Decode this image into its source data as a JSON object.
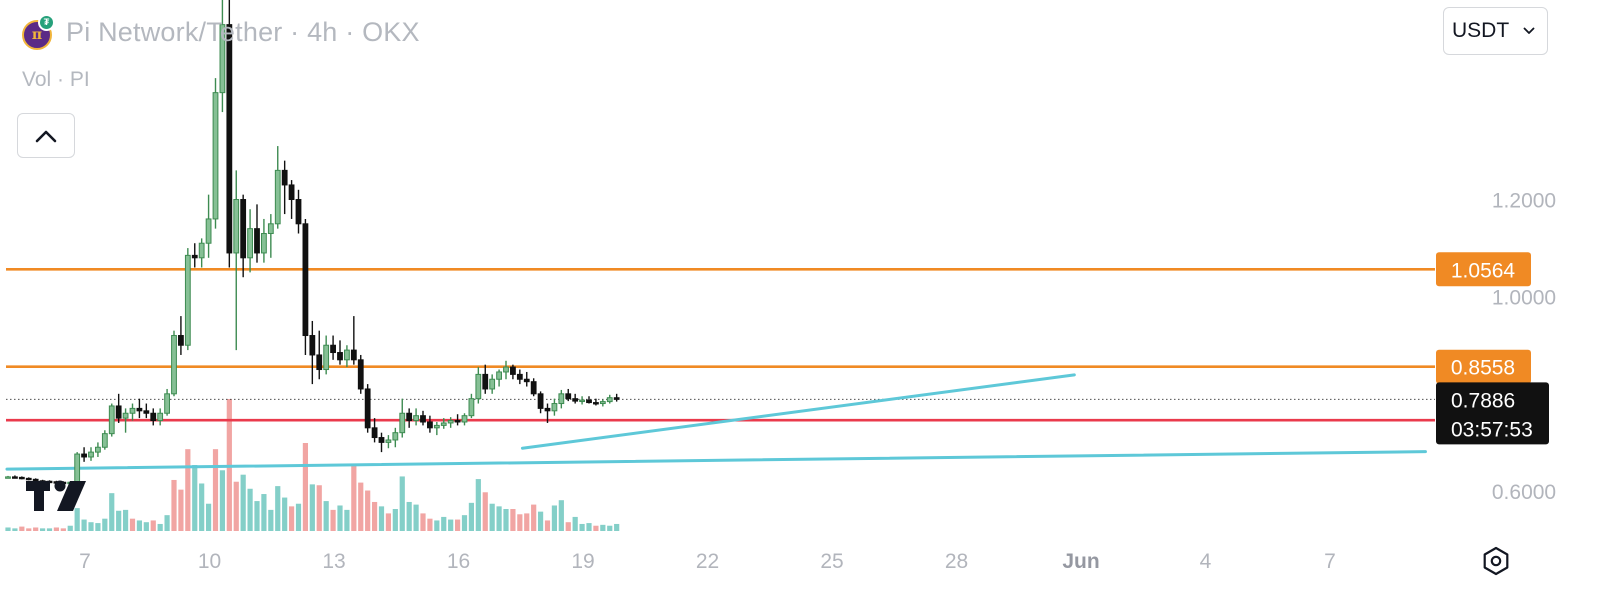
{
  "header": {
    "symbol_title": "Pi Network/Tether · 4h · OKX",
    "volume_label": "Vol · PI"
  },
  "currency_select": {
    "value": "USDT"
  },
  "icons": {
    "symbol_logo": "pi-network-coin-icon",
    "quote_logo": "tether-icon",
    "collapse": "chevron-up-icon",
    "dropdown": "chevron-down-icon",
    "brand": "tradingview-logo",
    "settings": "hexagon-settings-icon"
  },
  "colors": {
    "up_candle": "#3d8b51",
    "up_candle_fill": "#86c095",
    "down_candle": "#111111",
    "volume_up": "#84cfc8",
    "volume_down": "#f1a5a3",
    "resistance_line": "#f08a24",
    "support_line": "#ea3a4c",
    "trend_line": "#5ec8d8",
    "price_badge": "#111111"
  },
  "chart_data": {
    "type": "candlestick",
    "ylim": [
      0.3838,
      1.6107
    ],
    "y_ticks": [
      "1.2000",
      "1.0000",
      "0.6000"
    ],
    "x_ticks": [
      "7",
      "10",
      "13",
      "16",
      "19",
      "22",
      "25",
      "28",
      "Jun",
      "4",
      "7"
    ],
    "x_tick_values": [
      0,
      3,
      6,
      9,
      12,
      15,
      18,
      21,
      24,
      27,
      30
    ],
    "x_unit": "days",
    "horizontal_levels": [
      {
        "price": 1.0564,
        "label": "1.0564",
        "color": "#f08a24"
      },
      {
        "price": 0.8558,
        "label": "0.8558",
        "color": "#f08a24"
      },
      {
        "price": 0.7457,
        "label": "0.7457",
        "color": "#ea3a4c"
      }
    ],
    "last_price": {
      "price": 0.7886,
      "label": "0.7886",
      "countdown": "03:57:53"
    },
    "trend_lines": [
      {
        "x1": -1.88,
        "y1": 0.645,
        "x2": 32.3,
        "y2": 0.681
      },
      {
        "x1": 10.54,
        "y1": 0.688,
        "x2": 23.84,
        "y2": 0.839
      }
    ],
    "candles": [
      [
        0.628,
        0.631,
        0.626,
        0.629
      ],
      [
        0.629,
        0.632,
        0.626,
        0.628
      ],
      [
        0.628,
        0.63,
        0.624,
        0.626
      ],
      [
        0.626,
        0.628,
        0.622,
        0.624
      ],
      [
        0.624,
        0.626,
        0.619,
        0.621
      ],
      [
        0.621,
        0.623,
        0.618,
        0.62
      ],
      [
        0.62,
        0.622,
        0.617,
        0.619
      ],
      [
        0.619,
        0.621,
        0.616,
        0.618
      ],
      [
        0.618,
        0.62,
        0.615,
        0.617
      ],
      [
        0.617,
        0.619,
        0.614,
        0.618
      ],
      [
        0.618,
        0.68,
        0.616,
        0.676
      ],
      [
        0.676,
        0.69,
        0.66,
        0.67
      ],
      [
        0.67,
        0.69,
        0.662,
        0.68
      ],
      [
        0.68,
        0.7,
        0.67,
        0.69
      ],
      [
        0.69,
        0.725,
        0.685,
        0.718
      ],
      [
        0.718,
        0.78,
        0.712,
        0.775
      ],
      [
        0.775,
        0.8,
        0.74,
        0.75
      ],
      [
        0.75,
        0.77,
        0.72,
        0.76
      ],
      [
        0.76,
        0.78,
        0.745,
        0.77
      ],
      [
        0.77,
        0.79,
        0.75,
        0.765
      ],
      [
        0.765,
        0.78,
        0.75,
        0.76
      ],
      [
        0.76,
        0.77,
        0.735,
        0.745
      ],
      [
        0.745,
        0.77,
        0.735,
        0.76
      ],
      [
        0.76,
        0.81,
        0.755,
        0.8
      ],
      [
        0.8,
        0.93,
        0.795,
        0.92
      ],
      [
        0.92,
        0.96,
        0.88,
        0.9
      ],
      [
        0.9,
        1.1,
        0.89,
        1.085
      ],
      [
        1.085,
        1.11,
        1.06,
        1.08
      ],
      [
        1.08,
        1.12,
        1.06,
        1.11
      ],
      [
        1.11,
        1.21,
        1.08,
        1.16
      ],
      [
        1.16,
        1.45,
        1.14,
        1.42
      ],
      [
        1.42,
        1.62,
        1.38,
        1.56
      ],
      [
        1.56,
        1.62,
        1.06,
        1.09
      ],
      [
        1.09,
        1.26,
        0.89,
        1.2
      ],
      [
        1.2,
        1.21,
        1.04,
        1.08
      ],
      [
        1.08,
        1.18,
        1.05,
        1.14
      ],
      [
        1.14,
        1.19,
        1.07,
        1.09
      ],
      [
        1.09,
        1.16,
        1.07,
        1.13
      ],
      [
        1.13,
        1.17,
        1.08,
        1.15
      ],
      [
        1.15,
        1.31,
        1.14,
        1.26
      ],
      [
        1.26,
        1.28,
        1.17,
        1.23
      ],
      [
        1.23,
        1.24,
        1.16,
        1.2
      ],
      [
        1.2,
        1.22,
        1.13,
        1.15
      ],
      [
        1.15,
        1.16,
        0.88,
        0.92
      ],
      [
        0.92,
        0.95,
        0.82,
        0.88
      ],
      [
        0.88,
        0.93,
        0.83,
        0.85
      ],
      [
        0.85,
        0.92,
        0.84,
        0.9
      ],
      [
        0.9,
        0.92,
        0.87,
        0.885
      ],
      [
        0.885,
        0.91,
        0.86,
        0.87
      ],
      [
        0.87,
        0.9,
        0.855,
        0.89
      ],
      [
        0.89,
        0.96,
        0.86,
        0.87
      ],
      [
        0.87,
        0.88,
        0.8,
        0.81
      ],
      [
        0.81,
        0.82,
        0.72,
        0.73
      ],
      [
        0.73,
        0.75,
        0.7,
        0.71
      ],
      [
        0.71,
        0.72,
        0.68,
        0.7
      ],
      [
        0.7,
        0.715,
        0.688,
        0.705
      ],
      [
        0.705,
        0.73,
        0.69,
        0.72
      ],
      [
        0.72,
        0.79,
        0.71,
        0.76
      ],
      [
        0.76,
        0.77,
        0.73,
        0.745
      ],
      [
        0.745,
        0.77,
        0.735,
        0.755
      ],
      [
        0.755,
        0.765,
        0.735,
        0.742
      ],
      [
        0.742,
        0.755,
        0.72,
        0.73
      ],
      [
        0.73,
        0.742,
        0.715,
        0.735
      ],
      [
        0.735,
        0.75,
        0.728,
        0.74
      ],
      [
        0.74,
        0.752,
        0.73,
        0.745
      ],
      [
        0.745,
        0.758,
        0.735,
        0.742
      ],
      [
        0.742,
        0.76,
        0.735,
        0.755
      ],
      [
        0.755,
        0.8,
        0.75,
        0.79
      ],
      [
        0.79,
        0.855,
        0.78,
        0.84
      ],
      [
        0.84,
        0.86,
        0.8,
        0.81
      ],
      [
        0.81,
        0.84,
        0.8,
        0.83
      ],
      [
        0.83,
        0.85,
        0.815,
        0.845
      ],
      [
        0.845,
        0.868,
        0.83,
        0.855
      ],
      [
        0.855,
        0.86,
        0.83,
        0.84
      ],
      [
        0.84,
        0.85,
        0.82,
        0.83
      ],
      [
        0.83,
        0.845,
        0.815,
        0.825
      ],
      [
        0.825,
        0.832,
        0.795,
        0.8
      ],
      [
        0.8,
        0.805,
        0.76,
        0.77
      ],
      [
        0.77,
        0.78,
        0.74,
        0.765
      ],
      [
        0.765,
        0.79,
        0.755,
        0.78
      ],
      [
        0.78,
        0.808,
        0.77,
        0.8
      ],
      [
        0.8,
        0.81,
        0.785,
        0.79
      ],
      [
        0.79,
        0.8,
        0.78,
        0.785
      ],
      [
        0.785,
        0.795,
        0.778,
        0.787
      ],
      [
        0.787,
        0.795,
        0.78,
        0.782
      ],
      [
        0.782,
        0.79,
        0.776,
        0.78
      ],
      [
        0.78,
        0.788,
        0.774,
        0.784
      ],
      [
        0.784,
        0.798,
        0.78,
        0.792
      ],
      [
        0.792,
        0.8,
        0.784,
        0.7886
      ]
    ],
    "volume": [
      [
        0.04,
        0
      ],
      [
        0.03,
        0
      ],
      [
        0.05,
        1
      ],
      [
        0.03,
        1
      ],
      [
        0.04,
        1
      ],
      [
        0.03,
        0
      ],
      [
        0.03,
        0
      ],
      [
        0.04,
        1
      ],
      [
        0.03,
        1
      ],
      [
        0.06,
        0
      ],
      [
        0.26,
        0
      ],
      [
        0.13,
        0
      ],
      [
        0.1,
        0
      ],
      [
        0.09,
        0
      ],
      [
        0.14,
        0
      ],
      [
        0.43,
        0
      ],
      [
        0.23,
        0
      ],
      [
        0.24,
        0
      ],
      [
        0.14,
        1
      ],
      [
        0.12,
        0
      ],
      [
        0.1,
        0
      ],
      [
        0.12,
        1
      ],
      [
        0.08,
        0
      ],
      [
        0.18,
        0
      ],
      [
        0.58,
        1
      ],
      [
        0.47,
        1
      ],
      [
        0.93,
        1
      ],
      [
        0.75,
        0
      ],
      [
        0.54,
        0
      ],
      [
        0.31,
        0
      ],
      [
        0.93,
        1
      ],
      [
        0.69,
        0
      ],
      [
        1.5,
        1
      ],
      [
        0.56,
        1
      ],
      [
        0.64,
        0
      ],
      [
        0.48,
        0
      ],
      [
        0.34,
        0
      ],
      [
        0.42,
        0
      ],
      [
        0.24,
        0
      ],
      [
        0.51,
        0
      ],
      [
        0.38,
        0
      ],
      [
        0.28,
        1
      ],
      [
        0.31,
        0
      ],
      [
        1.0,
        1
      ],
      [
        0.53,
        0
      ],
      [
        0.52,
        1
      ],
      [
        0.34,
        0
      ],
      [
        0.24,
        1
      ],
      [
        0.29,
        0
      ],
      [
        0.24,
        0
      ],
      [
        0.76,
        1
      ],
      [
        0.55,
        1
      ],
      [
        0.46,
        1
      ],
      [
        0.33,
        1
      ],
      [
        0.28,
        0
      ],
      [
        0.2,
        1
      ],
      [
        0.25,
        0
      ],
      [
        0.62,
        0
      ],
      [
        0.33,
        0
      ],
      [
        0.3,
        0
      ],
      [
        0.2,
        1
      ],
      [
        0.14,
        1
      ],
      [
        0.12,
        0
      ],
      [
        0.16,
        0
      ],
      [
        0.13,
        0
      ],
      [
        0.13,
        1
      ],
      [
        0.18,
        0
      ],
      [
        0.32,
        0
      ],
      [
        0.59,
        0
      ],
      [
        0.44,
        1
      ],
      [
        0.31,
        0
      ],
      [
        0.28,
        0
      ],
      [
        0.25,
        0
      ],
      [
        0.25,
        1
      ],
      [
        0.19,
        1
      ],
      [
        0.2,
        1
      ],
      [
        0.3,
        1
      ],
      [
        0.22,
        0
      ],
      [
        0.12,
        1
      ],
      [
        0.29,
        0
      ],
      [
        0.35,
        0
      ],
      [
        0.1,
        1
      ],
      [
        0.16,
        0
      ],
      [
        0.08,
        0
      ],
      [
        0.09,
        0
      ],
      [
        0.06,
        1
      ],
      [
        0.07,
        0
      ],
      [
        0.06,
        0
      ],
      [
        0.08,
        0
      ]
    ]
  }
}
